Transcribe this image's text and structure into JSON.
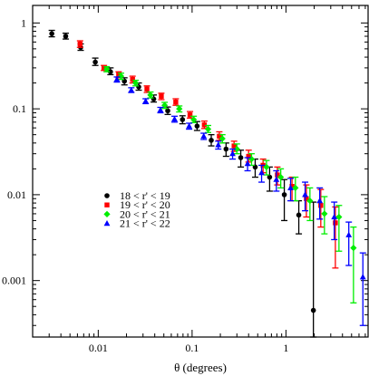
{
  "chart_data": {
    "type": "scatter",
    "xlabel": "θ (degrees)",
    "ylabel": "",
    "title": "",
    "xscale": "log",
    "yscale": "log",
    "xlim": [
      0.002,
      7.5
    ],
    "ylim": [
      0.00022,
      1.6
    ],
    "xticks": [
      0.01,
      0.1,
      1
    ],
    "xtick_labels": [
      "0.01",
      "0.1",
      "1"
    ],
    "yticks": [
      0.001,
      0.01,
      0.1,
      1
    ],
    "ytick_labels": [
      "0.001",
      "0.01",
      "0.1",
      "1"
    ],
    "grid": false,
    "legend_position": "center-left",
    "series": [
      {
        "name": "18 < r' < 19",
        "color": "#000000",
        "marker": "circle",
        "points": [
          {
            "x": 0.0032,
            "y": 0.75,
            "lo": 0.69,
            "hi": 0.82
          },
          {
            "x": 0.0045,
            "y": 0.7,
            "lo": 0.65,
            "hi": 0.76
          },
          {
            "x": 0.0065,
            "y": 0.52,
            "lo": 0.48,
            "hi": 0.57
          },
          {
            "x": 0.0093,
            "y": 0.35,
            "lo": 0.32,
            "hi": 0.39
          },
          {
            "x": 0.0135,
            "y": 0.27,
            "lo": 0.25,
            "hi": 0.3
          },
          {
            "x": 0.019,
            "y": 0.21,
            "lo": 0.19,
            "hi": 0.23
          },
          {
            "x": 0.027,
            "y": 0.18,
            "lo": 0.165,
            "hi": 0.2
          },
          {
            "x": 0.039,
            "y": 0.13,
            "lo": 0.12,
            "hi": 0.145
          },
          {
            "x": 0.055,
            "y": 0.095,
            "lo": 0.086,
            "hi": 0.105
          },
          {
            "x": 0.079,
            "y": 0.075,
            "lo": 0.067,
            "hi": 0.083
          },
          {
            "x": 0.113,
            "y": 0.063,
            "lo": 0.056,
            "hi": 0.071
          },
          {
            "x": 0.16,
            "y": 0.043,
            "lo": 0.037,
            "hi": 0.05
          },
          {
            "x": 0.23,
            "y": 0.034,
            "lo": 0.028,
            "hi": 0.04
          },
          {
            "x": 0.33,
            "y": 0.027,
            "lo": 0.021,
            "hi": 0.033
          },
          {
            "x": 0.47,
            "y": 0.021,
            "lo": 0.016,
            "hi": 0.026
          },
          {
            "x": 0.67,
            "y": 0.016,
            "lo": 0.011,
            "hi": 0.021
          },
          {
            "x": 0.96,
            "y": 0.01,
            "lo": 0.005,
            "hi": 0.015
          },
          {
            "x": 1.37,
            "y": 0.0058,
            "lo": 0.0035,
            "hi": 0.0085
          },
          {
            "x": 1.96,
            "y": 0.00045,
            "lo": 0.00022,
            "hi": 0.0082
          }
        ]
      },
      {
        "name": "19 < r' < 20",
        "color": "#ff0000",
        "marker": "square",
        "points": [
          {
            "x": 0.0064,
            "y": 0.57,
            "lo": 0.52,
            "hi": 0.62
          },
          {
            "x": 0.0115,
            "y": 0.3,
            "lo": 0.28,
            "hi": 0.32
          },
          {
            "x": 0.0165,
            "y": 0.25,
            "lo": 0.23,
            "hi": 0.27
          },
          {
            "x": 0.0232,
            "y": 0.22,
            "lo": 0.2,
            "hi": 0.24
          },
          {
            "x": 0.033,
            "y": 0.17,
            "lo": 0.155,
            "hi": 0.185
          },
          {
            "x": 0.047,
            "y": 0.14,
            "lo": 0.128,
            "hi": 0.152
          },
          {
            "x": 0.067,
            "y": 0.12,
            "lo": 0.11,
            "hi": 0.131
          },
          {
            "x": 0.095,
            "y": 0.085,
            "lo": 0.078,
            "hi": 0.093
          },
          {
            "x": 0.135,
            "y": 0.065,
            "lo": 0.059,
            "hi": 0.072
          },
          {
            "x": 0.195,
            "y": 0.048,
            "lo": 0.043,
            "hi": 0.054
          },
          {
            "x": 0.28,
            "y": 0.037,
            "lo": 0.032,
            "hi": 0.042
          },
          {
            "x": 0.4,
            "y": 0.028,
            "lo": 0.024,
            "hi": 0.033
          },
          {
            "x": 0.57,
            "y": 0.022,
            "lo": 0.018,
            "hi": 0.026
          },
          {
            "x": 0.81,
            "y": 0.017,
            "lo": 0.013,
            "hi": 0.021
          },
          {
            "x": 1.16,
            "y": 0.0125,
            "lo": 0.0085,
            "hi": 0.016
          },
          {
            "x": 1.65,
            "y": 0.009,
            "lo": 0.0055,
            "hi": 0.013
          },
          {
            "x": 2.35,
            "y": 0.0075,
            "lo": 0.0042,
            "hi": 0.0115
          },
          {
            "x": 3.36,
            "y": 0.0047,
            "lo": 0.0014,
            "hi": 0.0072
          }
        ]
      },
      {
        "name": "20 < r' < 21",
        "color": "#00ee00",
        "marker": "diamond",
        "points": [
          {
            "x": 0.0123,
            "y": 0.29,
            "lo": 0.27,
            "hi": 0.31
          },
          {
            "x": 0.0175,
            "y": 0.24,
            "lo": 0.22,
            "hi": 0.26
          },
          {
            "x": 0.025,
            "y": 0.2,
            "lo": 0.185,
            "hi": 0.215
          },
          {
            "x": 0.036,
            "y": 0.145,
            "lo": 0.134,
            "hi": 0.157
          },
          {
            "x": 0.051,
            "y": 0.11,
            "lo": 0.101,
            "hi": 0.119
          },
          {
            "x": 0.073,
            "y": 0.1,
            "lo": 0.092,
            "hi": 0.108
          },
          {
            "x": 0.104,
            "y": 0.075,
            "lo": 0.069,
            "hi": 0.082
          },
          {
            "x": 0.148,
            "y": 0.058,
            "lo": 0.053,
            "hi": 0.064
          },
          {
            "x": 0.21,
            "y": 0.045,
            "lo": 0.04,
            "hi": 0.05
          },
          {
            "x": 0.3,
            "y": 0.034,
            "lo": 0.03,
            "hi": 0.039
          },
          {
            "x": 0.43,
            "y": 0.026,
            "lo": 0.022,
            "hi": 0.03
          },
          {
            "x": 0.62,
            "y": 0.021,
            "lo": 0.017,
            "hi": 0.025
          },
          {
            "x": 0.88,
            "y": 0.016,
            "lo": 0.012,
            "hi": 0.02
          },
          {
            "x": 1.26,
            "y": 0.012,
            "lo": 0.0085,
            "hi": 0.016
          },
          {
            "x": 1.8,
            "y": 0.0085,
            "lo": 0.005,
            "hi": 0.012
          },
          {
            "x": 2.57,
            "y": 0.006,
            "lo": 0.0035,
            "hi": 0.0095
          },
          {
            "x": 3.67,
            "y": 0.0055,
            "lo": 0.0022,
            "hi": 0.0075
          },
          {
            "x": 5.24,
            "y": 0.0024,
            "lo": 0.00055,
            "hi": 0.0042
          }
        ]
      },
      {
        "name": "21 < r' < 22",
        "color": "#0000ff",
        "marker": "triangle",
        "points": [
          {
            "x": 0.0158,
            "y": 0.22,
            "lo": 0.205,
            "hi": 0.235
          },
          {
            "x": 0.0225,
            "y": 0.165,
            "lo": 0.155,
            "hi": 0.176
          },
          {
            "x": 0.032,
            "y": 0.123,
            "lo": 0.115,
            "hi": 0.131
          },
          {
            "x": 0.046,
            "y": 0.097,
            "lo": 0.09,
            "hi": 0.104
          },
          {
            "x": 0.065,
            "y": 0.076,
            "lo": 0.07,
            "hi": 0.082
          },
          {
            "x": 0.093,
            "y": 0.063,
            "lo": 0.058,
            "hi": 0.068
          },
          {
            "x": 0.133,
            "y": 0.048,
            "lo": 0.044,
            "hi": 0.052
          },
          {
            "x": 0.19,
            "y": 0.038,
            "lo": 0.034,
            "hi": 0.042
          },
          {
            "x": 0.27,
            "y": 0.03,
            "lo": 0.026,
            "hi": 0.034
          },
          {
            "x": 0.39,
            "y": 0.023,
            "lo": 0.019,
            "hi": 0.027
          },
          {
            "x": 0.55,
            "y": 0.018,
            "lo": 0.014,
            "hi": 0.022
          },
          {
            "x": 0.79,
            "y": 0.015,
            "lo": 0.011,
            "hi": 0.019
          },
          {
            "x": 1.12,
            "y": 0.012,
            "lo": 0.0085,
            "hi": 0.0155
          },
          {
            "x": 1.6,
            "y": 0.01,
            "lo": 0.0065,
            "hi": 0.014
          },
          {
            "x": 2.29,
            "y": 0.0085,
            "lo": 0.0052,
            "hi": 0.012
          },
          {
            "x": 3.27,
            "y": 0.0055,
            "lo": 0.003,
            "hi": 0.0082
          },
          {
            "x": 4.67,
            "y": 0.0034,
            "lo": 0.0015,
            "hi": 0.0048
          },
          {
            "x": 6.6,
            "y": 0.0011,
            "lo": 0.0003,
            "hi": 0.0021
          }
        ]
      }
    ]
  }
}
